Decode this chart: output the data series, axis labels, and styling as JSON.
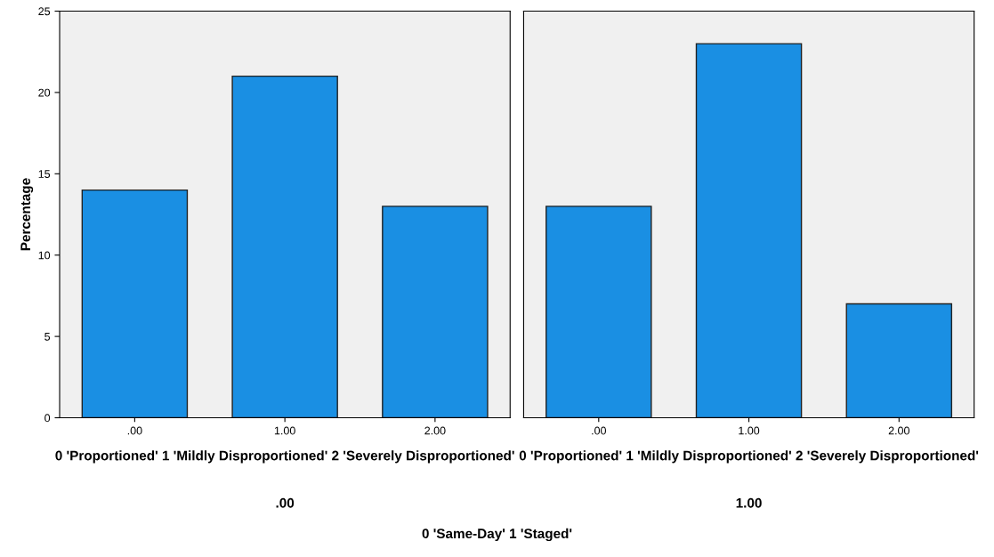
{
  "chart_data": [
    {
      "type": "bar",
      "ylabel": "Percentage",
      "xlabel": "0 'Proportioned' 1 'Mildly Disproportioned' 2 'Severely Disproportioned'",
      "categories": [
        ".00",
        "1.00",
        "2.00"
      ],
      "values": [
        14,
        21,
        13
      ],
      "color": "#1a8fe3",
      "ylim": [
        0,
        25
      ],
      "yticks": [
        0,
        5,
        10,
        15,
        20,
        25
      ],
      "grid": false,
      "annotations": [
        ".00",
        "0 'Same-Day' 1 'Staged'"
      ]
    },
    {
      "type": "bar",
      "xlabel": "0 'Proportioned' 1 'Mildly Disproportioned' 2 'Severely Disproportioned'",
      "categories": [
        ".00",
        "1.00",
        "2.00"
      ],
      "values": [
        13,
        23,
        7
      ],
      "color": "#1a8fe3",
      "ylim": [
        0,
        25
      ],
      "tick_labels": "x",
      "grid": false,
      "annotations": [
        "1.00"
      ]
    }
  ]
}
